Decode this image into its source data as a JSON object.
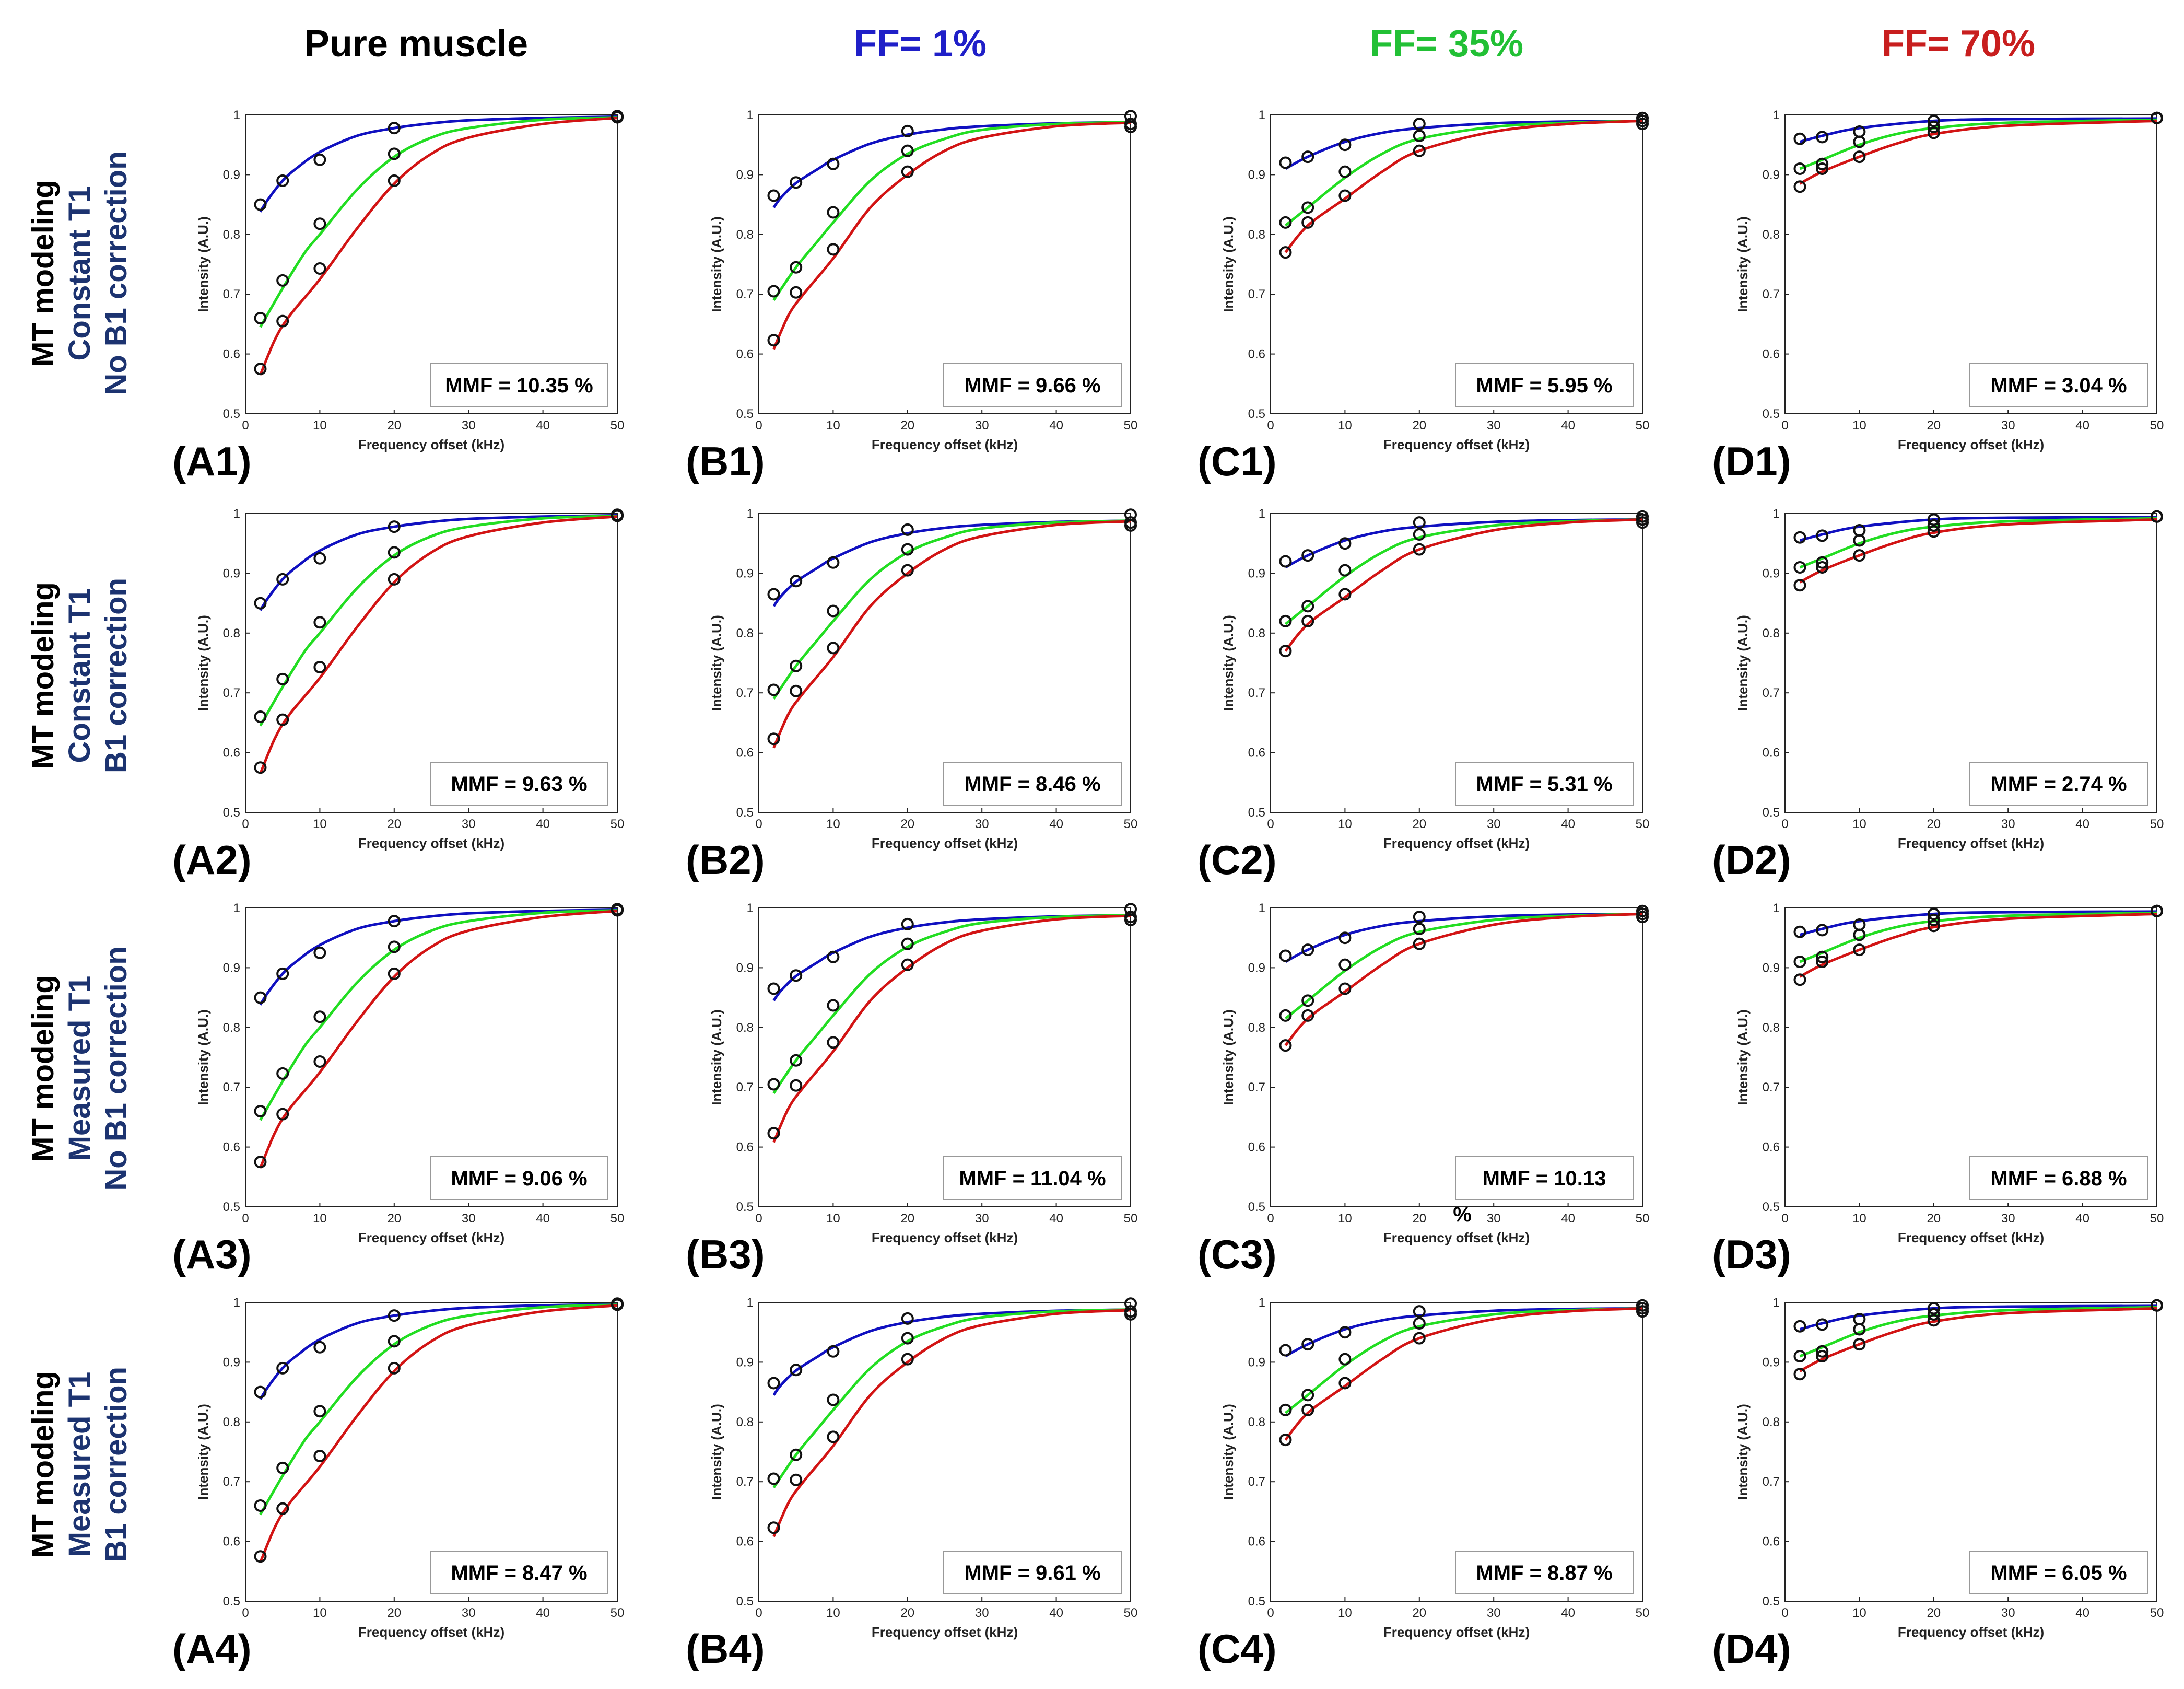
{
  "column_headers": [
    {
      "text": "Pure muscle",
      "color": "#000000"
    },
    {
      "text": "FF= 1%",
      "color": "#1f1fc8"
    },
    {
      "text": "FF= 35%",
      "color": "#22c035"
    },
    {
      "text": "FF= 70%",
      "color": "#c81e1e"
    }
  ],
  "row_labels": [
    {
      "line1": "MT modeling",
      "line2": "Constant T1",
      "line3": "No B1 correction"
    },
    {
      "line1": "MT modeling",
      "line2": "Constant T1",
      "line3": "B1 correction"
    },
    {
      "line1": "MT modeling",
      "line2": "Measured T1",
      "line3": "No B1 correction"
    },
    {
      "line1": "MT modeling",
      "line2": "Measured T1",
      "line3": "B1 correction"
    }
  ],
  "colors": {
    "black": "#000000",
    "navy": "#1c3370",
    "blue": "#1010c0",
    "green": "#22dd22",
    "red": "#d21414"
  },
  "axis": {
    "xlabel": "Frequency offset (kHz)",
    "ylabel": "Intensity (A.U.)",
    "xticks": [
      "0",
      "10",
      "20",
      "30",
      "40",
      "50"
    ],
    "yticks": [
      "0.5",
      "0.6",
      "0.7",
      "0.8",
      "0.9",
      "1"
    ]
  },
  "stray_mark": "%",
  "chart_data": [
    {
      "id": "A1",
      "panel_label": "(A1)",
      "mmf_label": "MMF = 10.35 %"
    },
    {
      "id": "B1",
      "panel_label": "(B1)",
      "mmf_label": "MMF = 9.66 %"
    },
    {
      "id": "C1",
      "panel_label": "(C1)",
      "mmf_label": "MMF = 5.95 %"
    },
    {
      "id": "D1",
      "panel_label": "(D1)",
      "mmf_label": "MMF = 3.04 %"
    },
    {
      "id": "A2",
      "panel_label": "(A2)",
      "mmf_label": "MMF = 9.63 %"
    },
    {
      "id": "B2",
      "panel_label": "(B2)",
      "mmf_label": "MMF = 8.46 %"
    },
    {
      "id": "C2",
      "panel_label": "(C2)",
      "mmf_label": "MMF = 5.31 %"
    },
    {
      "id": "D2",
      "panel_label": "(D2)",
      "mmf_label": "MMF = 2.74 %"
    },
    {
      "id": "A3",
      "panel_label": "(A3)",
      "mmf_label": "MMF = 9.06 %"
    },
    {
      "id": "B3",
      "panel_label": "(B3)",
      "mmf_label": "MMF = 11.04 %"
    },
    {
      "id": "C3",
      "panel_label": "(C3)",
      "mmf_label": "MMF = 10.13"
    },
    {
      "id": "D3",
      "panel_label": "(D3)",
      "mmf_label": "MMF = 6.88 %"
    },
    {
      "id": "A4",
      "panel_label": "(A4)",
      "mmf_label": "MMF = 8.47 %"
    },
    {
      "id": "B4",
      "panel_label": "(B4)",
      "mmf_label": "MMF = 9.61 %"
    },
    {
      "id": "C4",
      "panel_label": "(C4)",
      "mmf_label": "MMF = 8.87 %"
    },
    {
      "id": "D4",
      "panel_label": "(D4)",
      "mmf_label": "MMF = 6.05 %"
    }
  ],
  "series_by_column": [
    {
      "type": "line+scatter",
      "x": [
        2,
        5,
        10,
        20,
        50
      ],
      "xlim": [
        0,
        50
      ],
      "ylim": [
        0.5,
        1
      ],
      "series": [
        {
          "name": "blue",
          "color": "#1010c0",
          "points": [
            0.85,
            0.89,
            0.925,
            0.978,
            0.998
          ],
          "curve": [
            [
              2,
              0.838
            ],
            [
              3,
              0.858
            ],
            [
              5,
              0.89
            ],
            [
              7,
              0.912
            ],
            [
              10,
              0.938
            ],
            [
              15,
              0.965
            ],
            [
              20,
              0.978
            ],
            [
              25,
              0.986
            ],
            [
              30,
              0.991
            ],
            [
              40,
              0.995
            ],
            [
              50,
              0.997
            ]
          ]
        },
        {
          "name": "green",
          "color": "#22dd22",
          "points": [
            0.66,
            0.723,
            0.818,
            0.935,
            0.997
          ],
          "curve": [
            [
              2,
              0.645
            ],
            [
              5,
              0.71
            ],
            [
              8,
              0.77
            ],
            [
              10,
              0.8
            ],
            [
              15,
              0.875
            ],
            [
              20,
              0.93
            ],
            [
              25,
              0.962
            ],
            [
              30,
              0.978
            ],
            [
              40,
              0.992
            ],
            [
              50,
              0.996
            ]
          ]
        },
        {
          "name": "red",
          "color": "#d21414",
          "points": [
            0.575,
            0.655,
            0.743,
            0.89,
            0.996
          ],
          "curve": [
            [
              2,
              0.565
            ],
            [
              4,
              0.625
            ],
            [
              6,
              0.665
            ],
            [
              10,
              0.725
            ],
            [
              15,
              0.81
            ],
            [
              20,
              0.885
            ],
            [
              25,
              0.935
            ],
            [
              30,
              0.962
            ],
            [
              40,
              0.985
            ],
            [
              50,
              0.995
            ]
          ]
        }
      ]
    },
    {
      "type": "line+scatter",
      "x": [
        2,
        5,
        10,
        20,
        50
      ],
      "xlim": [
        0,
        50
      ],
      "ylim": [
        0.5,
        1
      ],
      "series": [
        {
          "name": "blue",
          "color": "#1010c0",
          "points": [
            0.865,
            0.887,
            0.918,
            0.973,
            0.985
          ],
          "curve": [
            [
              2,
              0.845
            ],
            [
              3,
              0.862
            ],
            [
              5,
              0.886
            ],
            [
              8,
              0.91
            ],
            [
              10,
              0.925
            ],
            [
              15,
              0.952
            ],
            [
              20,
              0.967
            ],
            [
              25,
              0.976
            ],
            [
              30,
              0.981
            ],
            [
              40,
              0.986
            ],
            [
              50,
              0.988
            ]
          ]
        },
        {
          "name": "green",
          "color": "#22dd22",
          "points": [
            0.705,
            0.745,
            0.837,
            0.94,
            0.998
          ],
          "curve": [
            [
              2,
              0.69
            ],
            [
              5,
              0.745
            ],
            [
              8,
              0.79
            ],
            [
              10,
              0.82
            ],
            [
              15,
              0.89
            ],
            [
              20,
              0.935
            ],
            [
              25,
              0.96
            ],
            [
              30,
              0.975
            ],
            [
              40,
              0.985
            ],
            [
              50,
              0.988
            ]
          ]
        },
        {
          "name": "red",
          "color": "#d21414",
          "points": [
            0.623,
            0.703,
            0.775,
            0.905,
            0.98
          ],
          "curve": [
            [
              2,
              0.608
            ],
            [
              4,
              0.665
            ],
            [
              6,
              0.7
            ],
            [
              10,
              0.76
            ],
            [
              15,
              0.845
            ],
            [
              20,
              0.9
            ],
            [
              25,
              0.94
            ],
            [
              30,
              0.962
            ],
            [
              40,
              0.981
            ],
            [
              50,
              0.987
            ]
          ]
        }
      ]
    },
    {
      "type": "line+scatter",
      "x": [
        2,
        5,
        10,
        20,
        50
      ],
      "xlim": [
        0,
        50
      ],
      "ylim": [
        0.5,
        1
      ],
      "series": [
        {
          "name": "blue",
          "color": "#1010c0",
          "points": [
            0.92,
            0.93,
            0.95,
            0.985,
            0.995
          ],
          "curve": [
            [
              2,
              0.91
            ],
            [
              5,
              0.93
            ],
            [
              10,
              0.955
            ],
            [
              15,
              0.97
            ],
            [
              20,
              0.978
            ],
            [
              30,
              0.986
            ],
            [
              40,
              0.989
            ],
            [
              50,
              0.99
            ]
          ]
        },
        {
          "name": "green",
          "color": "#22dd22",
          "points": [
            0.82,
            0.845,
            0.905,
            0.965,
            0.99
          ],
          "curve": [
            [
              2,
              0.815
            ],
            [
              5,
              0.845
            ],
            [
              10,
              0.895
            ],
            [
              15,
              0.935
            ],
            [
              20,
              0.96
            ],
            [
              30,
              0.98
            ],
            [
              40,
              0.987
            ],
            [
              50,
              0.99
            ]
          ]
        },
        {
          "name": "red",
          "color": "#d21414",
          "points": [
            0.77,
            0.82,
            0.865,
            0.94,
            0.985
          ],
          "curve": [
            [
              2,
              0.77
            ],
            [
              5,
              0.815
            ],
            [
              10,
              0.86
            ],
            [
              15,
              0.905
            ],
            [
              20,
              0.94
            ],
            [
              30,
              0.972
            ],
            [
              40,
              0.985
            ],
            [
              50,
              0.99
            ]
          ]
        }
      ]
    },
    {
      "type": "line+scatter",
      "x": [
        2,
        5,
        10,
        20,
        50
      ],
      "xlim": [
        0,
        50
      ],
      "ylim": [
        0.5,
        1
      ],
      "series": [
        {
          "name": "blue",
          "color": "#1010c0",
          "points": [
            0.96,
            0.963,
            0.972,
            0.99,
            0.995
          ],
          "curve": [
            [
              2,
              0.955
            ],
            [
              5,
              0.965
            ],
            [
              10,
              0.978
            ],
            [
              20,
              0.99
            ],
            [
              30,
              0.993
            ],
            [
              50,
              0.994
            ]
          ]
        },
        {
          "name": "green",
          "color": "#22dd22",
          "points": [
            0.91,
            0.918,
            0.955,
            0.98,
            0.995
          ],
          "curve": [
            [
              2,
              0.91
            ],
            [
              5,
              0.925
            ],
            [
              10,
              0.95
            ],
            [
              15,
              0.968
            ],
            [
              20,
              0.978
            ],
            [
              30,
              0.987
            ],
            [
              50,
              0.992
            ]
          ]
        },
        {
          "name": "red",
          "color": "#d21414",
          "points": [
            0.88,
            0.91,
            0.93,
            0.97,
            0.995
          ],
          "curve": [
            [
              2,
              0.885
            ],
            [
              5,
              0.905
            ],
            [
              10,
              0.93
            ],
            [
              15,
              0.952
            ],
            [
              20,
              0.968
            ],
            [
              30,
              0.982
            ],
            [
              50,
              0.99
            ]
          ]
        }
      ]
    }
  ]
}
